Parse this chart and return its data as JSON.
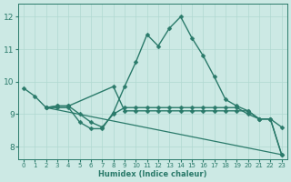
{
  "xlabel": "Humidex (Indice chaleur)",
  "bg_color": "#cce9e4",
  "grid_color": "#b0d8d0",
  "line_color": "#2a7a6a",
  "xlim": [
    -0.5,
    23.5
  ],
  "ylim": [
    7.6,
    12.4
  ],
  "yticks": [
    8,
    9,
    10,
    11,
    12
  ],
  "xticks": [
    0,
    1,
    2,
    3,
    4,
    5,
    6,
    7,
    8,
    9,
    10,
    11,
    12,
    13,
    14,
    15,
    16,
    17,
    18,
    19,
    20,
    21,
    22,
    23
  ],
  "lines": [
    {
      "x": [
        0,
        1,
        2,
        3,
        4,
        5,
        6,
        7,
        8,
        9,
        10,
        11,
        12,
        13,
        14,
        15,
        16,
        17,
        18,
        19,
        20,
        21,
        22,
        23
      ],
      "y": [
        9.8,
        9.55,
        9.2,
        9.2,
        9.2,
        8.75,
        8.55,
        8.55,
        9.05,
        9.85,
        10.6,
        11.45,
        11.1,
        11.65,
        12.0,
        11.35,
        10.8,
        10.15,
        9.45,
        9.25,
        9.1,
        8.85,
        8.85,
        7.75
      ],
      "marker": "D",
      "markersize": 2.5,
      "linewidth": 1.0,
      "linestyle": "-"
    },
    {
      "x": [
        2,
        3,
        4,
        5,
        6,
        7,
        8,
        9,
        10,
        11,
        12,
        13,
        14,
        15,
        16,
        17,
        18,
        19,
        20,
        21,
        22,
        23
      ],
      "y": [
        9.2,
        9.25,
        9.25,
        9.0,
        8.75,
        8.6,
        9.0,
        9.2,
        9.2,
        9.2,
        9.2,
        9.2,
        9.2,
        9.2,
        9.2,
        9.2,
        9.2,
        9.2,
        9.0,
        8.85,
        8.85,
        8.6
      ],
      "marker": "D",
      "markersize": 2.5,
      "linewidth": 1.0,
      "linestyle": "-"
    },
    {
      "x": [
        2,
        3,
        4,
        8,
        9,
        10,
        11,
        12,
        13,
        14,
        15,
        16,
        17,
        18,
        19,
        20,
        21,
        22,
        23
      ],
      "y": [
        9.2,
        9.25,
        9.25,
        9.85,
        9.1,
        9.1,
        9.1,
        9.1,
        9.1,
        9.1,
        9.1,
        9.1,
        9.1,
        9.1,
        9.1,
        9.1,
        8.85,
        8.85,
        7.75
      ],
      "marker": "D",
      "markersize": 2.5,
      "linewidth": 1.0,
      "linestyle": "-"
    },
    {
      "x": [
        2,
        23
      ],
      "y": [
        9.2,
        7.75
      ],
      "marker": null,
      "markersize": 0,
      "linewidth": 0.9,
      "linestyle": "-"
    }
  ]
}
